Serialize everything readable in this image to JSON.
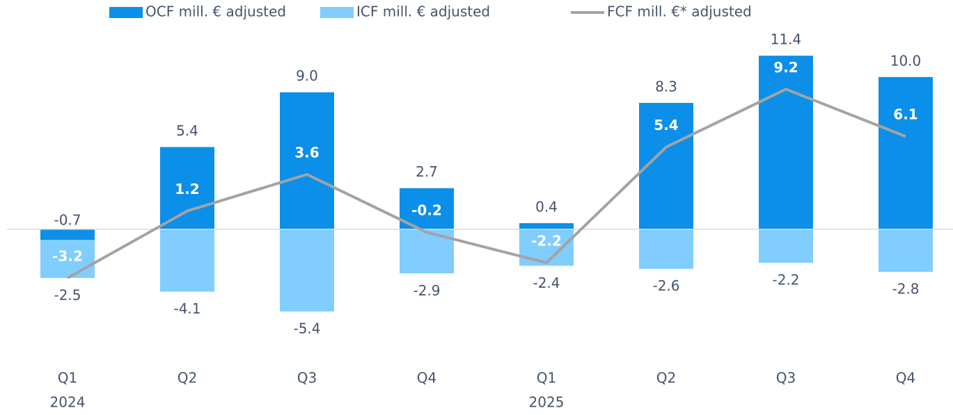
{
  "chart_data": {
    "type": "bar",
    "categories": [
      "Q1",
      "Q2",
      "Q3",
      "Q4",
      "Q1",
      "Q2",
      "Q3",
      "Q4"
    ],
    "year_labels": [
      "2024",
      null,
      null,
      null,
      "2025",
      null,
      null,
      null
    ],
    "series": [
      {
        "name": "OCF mill. € adjusted",
        "color": "#0b8fe9",
        "kind": "bar",
        "values": [
          -0.7,
          5.4,
          9.0,
          2.7,
          0.4,
          8.3,
          11.4,
          10.0
        ],
        "value_labels": [
          "-0.7",
          "5.4",
          "9.0",
          "2.7",
          "0.4",
          "8.3",
          "11.4",
          "10.0"
        ]
      },
      {
        "name": "ICF mill. € adjusted",
        "color": "#80cdfe",
        "kind": "bar",
        "values": [
          -2.5,
          -4.1,
          -5.4,
          -2.9,
          -2.4,
          -2.6,
          -2.2,
          -2.8
        ],
        "value_labels": [
          "-2.5",
          "-4.1",
          "-5.4",
          "-2.9",
          "-2.4",
          "-2.6",
          "-2.2",
          "-2.8"
        ]
      },
      {
        "name": "FCF mill. €* adjusted",
        "color": "#a3a3a3",
        "kind": "line",
        "values": [
          -3.2,
          1.2,
          3.6,
          -0.2,
          -2.2,
          5.4,
          9.2,
          6.1
        ],
        "value_labels": [
          "-3.2",
          "1.2",
          "3.6",
          "-0.2",
          "-2.2",
          "5.4",
          "9.2",
          "6.1"
        ]
      }
    ],
    "ylim": [
      -8,
      12
    ],
    "stacked": true
  }
}
